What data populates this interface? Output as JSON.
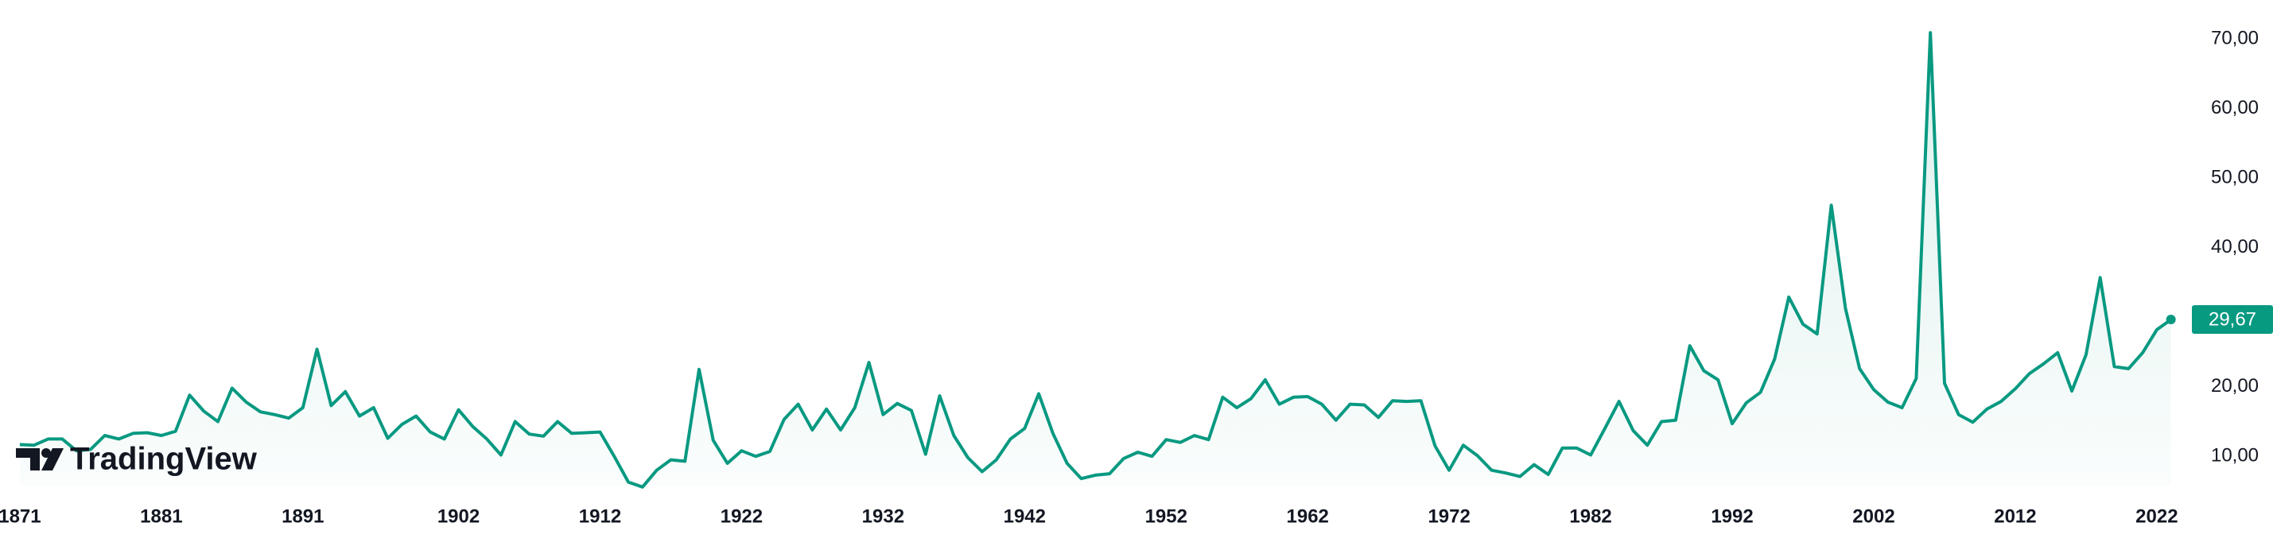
{
  "chart_data": {
    "type": "line",
    "x": [
      1871,
      1872,
      1873,
      1874,
      1875,
      1876,
      1877,
      1878,
      1879,
      1880,
      1881,
      1882,
      1883,
      1884,
      1885,
      1886,
      1887,
      1888,
      1889,
      1890,
      1891,
      1892,
      1893,
      1894,
      1895,
      1896,
      1897,
      1898,
      1899,
      1900,
      1901,
      1902,
      1903,
      1904,
      1905,
      1906,
      1907,
      1908,
      1909,
      1910,
      1911,
      1912,
      1913,
      1914,
      1915,
      1916,
      1917,
      1918,
      1919,
      1920,
      1921,
      1922,
      1923,
      1924,
      1925,
      1926,
      1927,
      1928,
      1929,
      1930,
      1931,
      1932,
      1933,
      1934,
      1935,
      1936,
      1937,
      1938,
      1939,
      1940,
      1941,
      1942,
      1943,
      1944,
      1945,
      1946,
      1947,
      1948,
      1949,
      1950,
      1951,
      1952,
      1953,
      1954,
      1955,
      1956,
      1957,
      1958,
      1959,
      1960,
      1961,
      1962,
      1963,
      1964,
      1965,
      1966,
      1967,
      1968,
      1969,
      1970,
      1971,
      1972,
      1973,
      1974,
      1975,
      1976,
      1977,
      1978,
      1979,
      1980,
      1981,
      1982,
      1983,
      1984,
      1985,
      1986,
      1987,
      1988,
      1989,
      1990,
      1991,
      1992,
      1993,
      1994,
      1995,
      1996,
      1997,
      1998,
      1999,
      2000,
      2001,
      2002,
      2003,
      2004,
      2005,
      2006,
      2007,
      2008,
      2009,
      2010,
      2011,
      2012,
      2013,
      2014,
      2015,
      2016,
      2017,
      2018,
      2019,
      2020,
      2021,
      2022,
      2023
    ],
    "values": [
      11.7,
      11.6,
      12.5,
      12.5,
      10.8,
      11.0,
      13.0,
      12.5,
      13.3,
      13.4,
      13.0,
      13.6,
      18.8,
      16.5,
      15.0,
      19.8,
      17.8,
      16.4,
      16.0,
      15.5,
      17.0,
      25.4,
      17.3,
      19.3,
      15.8,
      17.0,
      12.6,
      14.6,
      15.8,
      13.5,
      12.5,
      16.7,
      14.3,
      12.5,
      10.2,
      15.0,
      13.2,
      12.9,
      15.0,
      13.3,
      13.4,
      13.5,
      10.0,
      6.3,
      5.6,
      8.0,
      9.5,
      9.3,
      22.5,
      12.3,
      9.0,
      10.8,
      10.0,
      10.7,
      15.3,
      17.5,
      13.8,
      16.8,
      13.8,
      17.0,
      23.5,
      16.0,
      17.6,
      16.6,
      10.3,
      18.7,
      13.0,
      9.8,
      7.8,
      9.5,
      12.5,
      14.0,
      19.0,
      13.3,
      9.0,
      6.8,
      7.3,
      7.5,
      9.7,
      10.6,
      10.0,
      12.4,
      12.0,
      13.0,
      12.4,
      18.5,
      17.0,
      18.3,
      21.0,
      17.5,
      18.5,
      18.6,
      17.5,
      15.2,
      17.5,
      17.4,
      15.6,
      18.0,
      17.9,
      18.0,
      11.5,
      8.0,
      11.6,
      10.1,
      8.0,
      7.6,
      7.1,
      8.8,
      7.4,
      11.2,
      11.2,
      10.2,
      14.0,
      17.9,
      13.7,
      11.6,
      15.0,
      15.2,
      25.9,
      22.3,
      21.0,
      14.7,
      17.7,
      19.2,
      24.0,
      32.9,
      29.0,
      27.6,
      46.1,
      31.3,
      22.6,
      19.6,
      17.8,
      17.0,
      21.2,
      70.9,
      20.5,
      16.0,
      14.9,
      16.8,
      17.9,
      19.7,
      21.9,
      23.3,
      24.9,
      19.4,
      24.6,
      35.7,
      22.9,
      22.6,
      24.9,
      28.2,
      29.67
    ],
    "last_value_label": "29,67",
    "color": "#089981",
    "xlim": [
      1869.6,
      2023.3
    ],
    "xticks": [
      1871,
      1881,
      1891,
      1902,
      1912,
      1922,
      1932,
      1942,
      1952,
      1962,
      1972,
      1982,
      1992,
      2002,
      2012,
      2022
    ],
    "ylim": [
      5.8,
      75.6
    ],
    "yticks": [
      {
        "value": 10,
        "label": "10,00"
      },
      {
        "value": 20,
        "label": "20,00"
      },
      {
        "value": 30,
        "label": "30,00"
      },
      {
        "value": 40,
        "label": "40,00"
      },
      {
        "value": 50,
        "label": "50,00"
      },
      {
        "value": 60,
        "label": "60,00"
      },
      {
        "value": 70,
        "label": "70,00"
      }
    ],
    "logo": "TradingView"
  }
}
